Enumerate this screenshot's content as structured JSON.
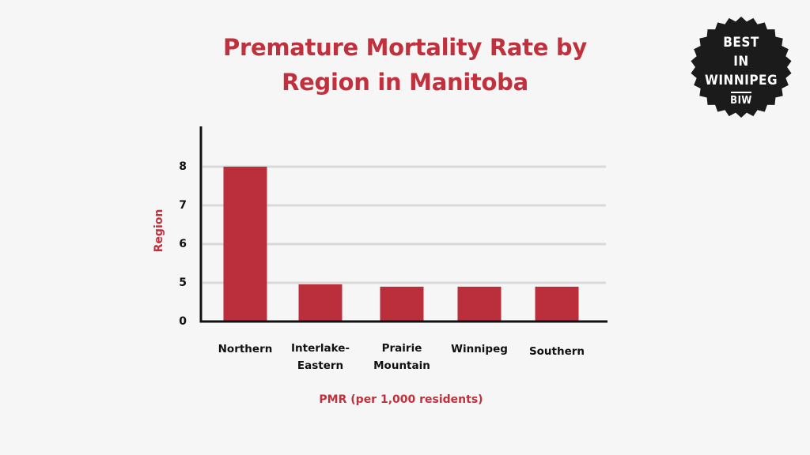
{
  "chart_data": {
    "type": "bar",
    "title": "Premature Mortality Rate by Region in Manitoba",
    "xlabel": "PMR (per 1,000 residents)",
    "ylabel": "Region",
    "categories": [
      "Northern",
      "Interlake-\nEastern",
      "Prairie\nMountain",
      "Winnipeg",
      "Southern"
    ],
    "values": [
      8,
      4.8,
      4.5,
      4.5,
      4.5
    ],
    "y_ticks": [
      "0",
      "5",
      "6",
      "7",
      "8"
    ],
    "grid": true,
    "colors": {
      "bar": "#bb2f3d",
      "title": "#c0303d",
      "grid": "#d9d9d9",
      "axis": "#111111"
    }
  },
  "badge": {
    "line1": "BEST",
    "line2": "IN",
    "line3": "WINNIPEG",
    "line4": "BIW"
  }
}
